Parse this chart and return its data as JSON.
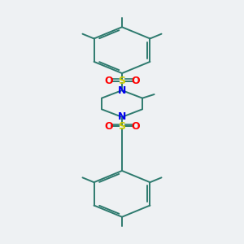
{
  "bg_color": "#eef1f3",
  "bond_color": "#2d7a6e",
  "bond_width": 1.4,
  "N_color": "#0000ee",
  "S_color": "#cccc00",
  "O_color": "#ff0000",
  "figsize": [
    3.0,
    3.0
  ],
  "dpi": 100,
  "xlim": [
    0,
    10
  ],
  "ylim": [
    0,
    14
  ]
}
